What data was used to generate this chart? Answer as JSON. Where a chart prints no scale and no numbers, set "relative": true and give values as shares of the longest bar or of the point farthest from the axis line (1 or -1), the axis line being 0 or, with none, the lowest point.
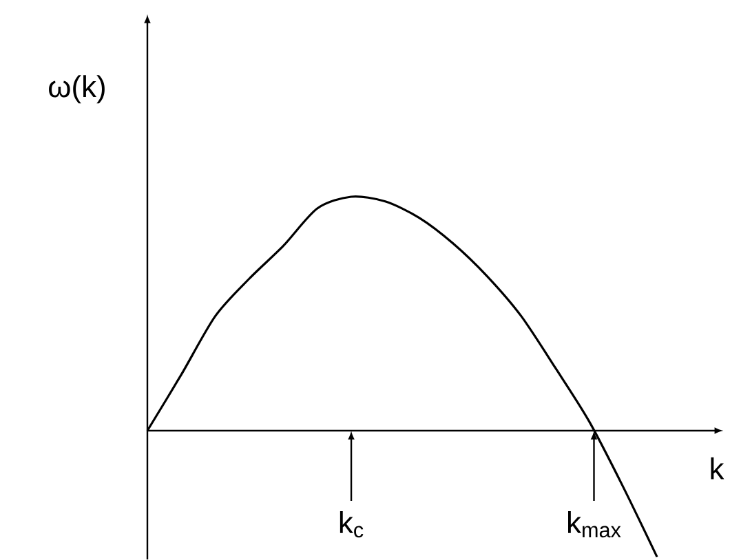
{
  "chart_data": {
    "type": "line",
    "relative": true,
    "xlabel": "k",
    "ylabel": "ω(k)",
    "categories": [
      null,
      null,
      null,
      null,
      null,
      null,
      null,
      null,
      null,
      null,
      null,
      null,
      null,
      null,
      null,
      null
    ],
    "series": [
      {
        "color": "#000000",
        "values": [
          0,
          0.24,
          0.49,
          0.65,
          0.79,
          0.95,
          1.0,
          0.98,
          0.91,
          0.8,
          0.66,
          0.49,
          0.27,
          0.04,
          -0.24,
          -0.54
        ]
      }
    ],
    "annotations": [
      "k$_{c}$",
      "k$_{max}$"
    ],
    "marker": "none",
    "line_style": "solid"
  }
}
